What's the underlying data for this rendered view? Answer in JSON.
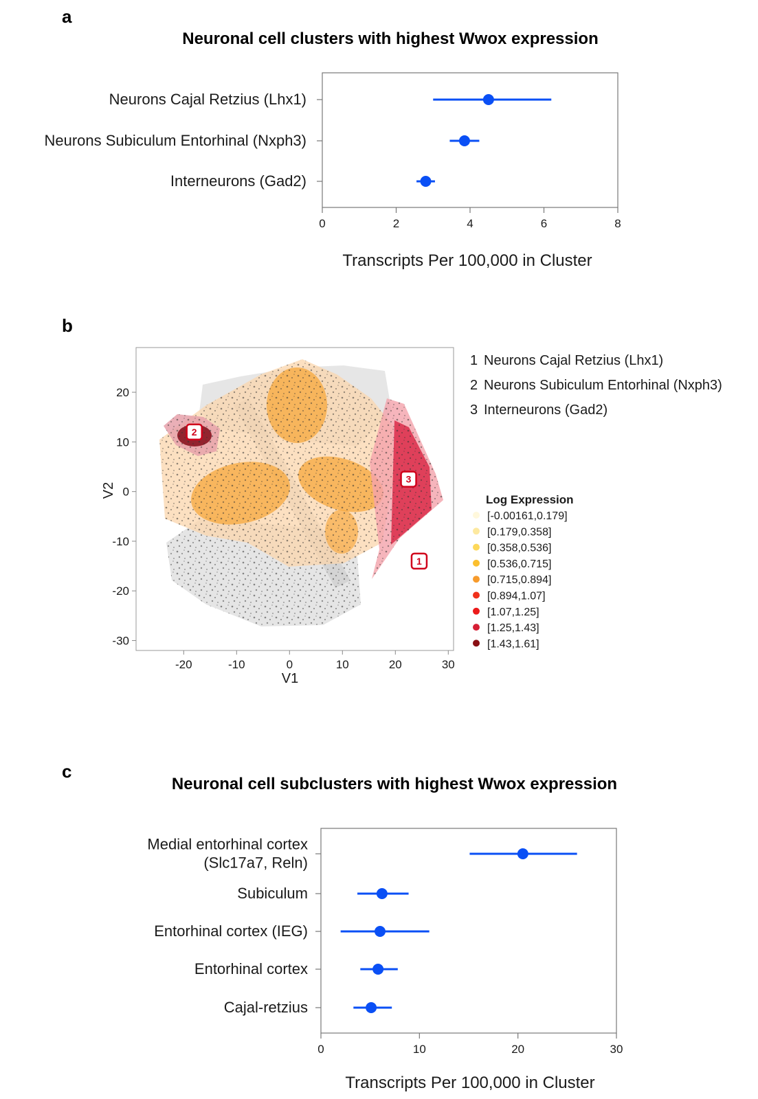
{
  "panels": {
    "a": "a",
    "b": "b",
    "c": "c"
  },
  "chart_data": [
    {
      "type": "scatter",
      "subtype": "dot-with-error-bars",
      "title": "Neuronal cell clusters with highest Wwox expression",
      "categories": [
        "Neurons Cajal Retzius (Lhx1)",
        "Neurons Subiculum Entorhinal (Nxph3)",
        "Interneurons (Gad2)"
      ],
      "values": [
        4.5,
        3.85,
        2.8
      ],
      "lower": [
        3.0,
        3.45,
        2.55
      ],
      "upper": [
        6.2,
        4.25,
        3.05
      ],
      "xlim": [
        0,
        8
      ],
      "xticks": [
        0,
        2,
        4,
        6,
        8
      ],
      "xlabel": "Transcripts Per 100,000 in Cluster",
      "ylabel": "",
      "color": "#0a4ff5"
    },
    {
      "type": "scatter",
      "subtype": "tsne-cluster-map",
      "title": "",
      "xlabel": "V1",
      "ylabel": "V2",
      "xlim": [
        -29,
        31
      ],
      "ylim": [
        -32,
        29
      ],
      "xticks": [
        -20,
        -10,
        0,
        10,
        20,
        30
      ],
      "yticks": [
        20,
        10,
        0,
        -10,
        -20,
        -30
      ],
      "markers": [
        {
          "label": "1",
          "x": 24.5,
          "y": -14
        },
        {
          "label": "2",
          "x": -18,
          "y": 12
        },
        {
          "label": "3",
          "x": 22.5,
          "y": 2.5
        }
      ],
      "cluster_legend": [
        "Neurons Cajal Retzius (Lhx1)",
        "Neurons Subiculum Entorhinal (Nxph3)",
        "Interneurons (Gad2)"
      ],
      "cluster_legend_numbers": [
        "1",
        "2",
        "3"
      ],
      "color_legend_title": "Log Expression",
      "color_legend": [
        {
          "label": "[-0.00161,0.179]",
          "color": "#fff8dc"
        },
        {
          "label": "[0.179,0.358]",
          "color": "#fde9a0"
        },
        {
          "label": "[0.358,0.536]",
          "color": "#fdd85a"
        },
        {
          "label": "[0.536,0.715]",
          "color": "#fbbf2e"
        },
        {
          "label": "[0.715,0.894]",
          "color": "#f79b2c"
        },
        {
          "label": "[0.894,1.07]",
          "color": "#f0311c"
        },
        {
          "label": "[1.07,1.25]",
          "color": "#ec1a1a"
        },
        {
          "label": "[1.25,1.43]",
          "color": "#d61f35"
        },
        {
          "label": "[1.43,1.61]",
          "color": "#8a0f14"
        }
      ],
      "regions": [
        {
          "name": "background-gray",
          "level": 0
        },
        {
          "name": "orange-main",
          "level": 4
        },
        {
          "name": "cluster-2",
          "level": 8
        },
        {
          "name": "cluster-3",
          "level": 7
        },
        {
          "name": "cluster-1",
          "level": 6
        }
      ]
    },
    {
      "type": "scatter",
      "subtype": "dot-with-error-bars",
      "title": "Neuronal cell subclusters with highest Wwox expression",
      "categories": [
        [
          "Medial entorhinal cortex",
          "(Slc17a7, Reln)"
        ],
        [
          "Subiculum"
        ],
        [
          "Entorhinal cortex (IEG)"
        ],
        [
          "Entorhinal cortex"
        ],
        [
          "Cajal-retzius"
        ]
      ],
      "values": [
        20.5,
        6.2,
        6.0,
        5.8,
        5.1
      ],
      "lower": [
        15.1,
        3.7,
        2.0,
        4.0,
        3.3
      ],
      "upper": [
        26.0,
        8.9,
        11.0,
        7.8,
        7.2
      ],
      "xlim": [
        0,
        30
      ],
      "xticks": [
        0,
        10,
        20,
        30
      ],
      "xlabel": "Transcripts Per 100,000 in Cluster",
      "ylabel": "",
      "color": "#0a4ff5"
    }
  ]
}
